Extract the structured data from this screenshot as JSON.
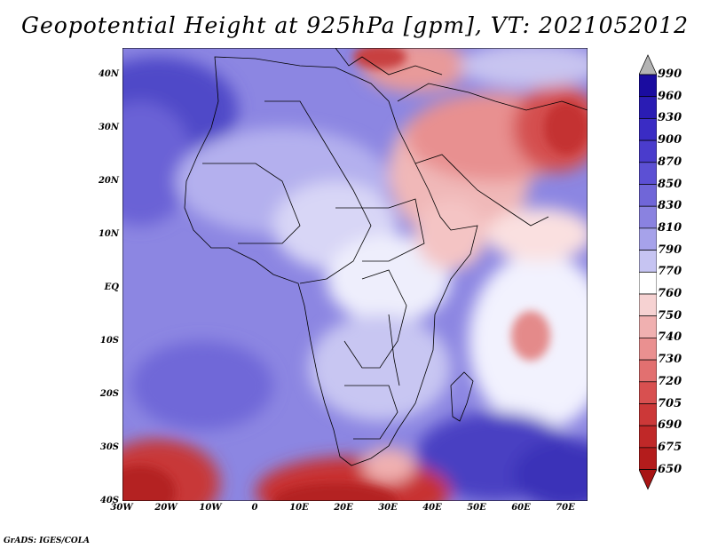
{
  "title": "Geopotential Height at 925hPa [gpm], VT: 2021052012",
  "credit": "GrADS: IGES/COLA",
  "lat_ticks": [
    "40N",
    "30N",
    "20N",
    "10N",
    "EQ",
    "10S",
    "20S",
    "30S",
    "40S"
  ],
  "lon_ticks": [
    "30W",
    "20W",
    "10W",
    "0",
    "10E",
    "20E",
    "30E",
    "40E",
    "50E",
    "60E",
    "70E"
  ],
  "colorbar": {
    "levels": [
      "990",
      "960",
      "930",
      "900",
      "870",
      "850",
      "830",
      "810",
      "790",
      "770",
      "760",
      "750",
      "740",
      "730",
      "720",
      "705",
      "690",
      "675",
      "650"
    ],
    "colors": [
      "#b4b4b4",
      "#1a0ca0",
      "#2a1cb4",
      "#3a2cc4",
      "#4a3ccc",
      "#5c50d4",
      "#7066d8",
      "#8a82e0",
      "#a6a2ea",
      "#c6c4f2",
      "#ffffff",
      "#f6d2d2",
      "#f0b0b0",
      "#ea9090",
      "#e27070",
      "#d85050",
      "#cc3838",
      "#c02828",
      "#b41c1c",
      "#a81414"
    ]
  }
}
